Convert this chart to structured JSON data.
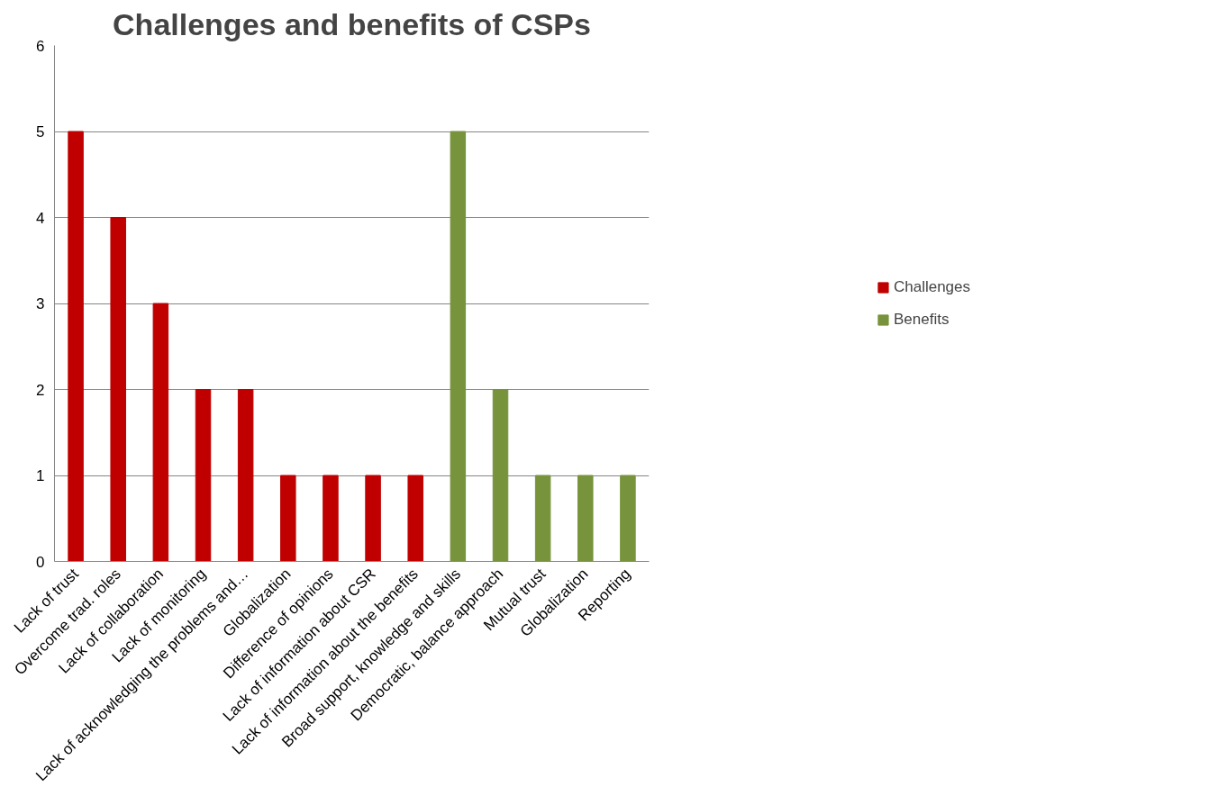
{
  "chart_data": {
    "type": "bar",
    "title": "Challenges and benefits of CSPs",
    "categories": [
      "Lack of trust",
      "Overcome trad. roles",
      "Lack of collaboration",
      "Lack of monitoring",
      "Lack of acknowledging the problems and…",
      "Globalization",
      "Difference of opinions",
      "Lack of information about CSR",
      "Lack of information about the benefits",
      "Broad support, knowledge and skills",
      "Democratic, balance approach",
      "Mutual trust",
      "Globalization",
      "Reporting"
    ],
    "series": [
      {
        "name": "Challenges",
        "color": "#c00000",
        "values": [
          5,
          4,
          3,
          2,
          2,
          1,
          1,
          1,
          1,
          null,
          null,
          null,
          null,
          null
        ]
      },
      {
        "name": "Benefits",
        "color": "#77933c",
        "values": [
          null,
          null,
          null,
          null,
          null,
          null,
          null,
          null,
          null,
          5,
          2,
          1,
          1,
          1
        ]
      }
    ],
    "ylim": [
      0,
      6
    ],
    "yticks": [
      0,
      1,
      2,
      3,
      4,
      5,
      6
    ],
    "grid": "y",
    "legend": "right"
  }
}
